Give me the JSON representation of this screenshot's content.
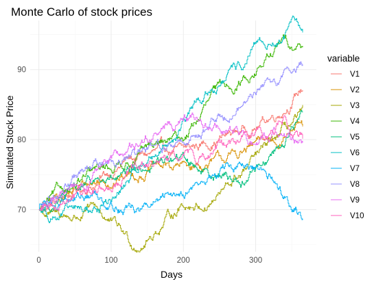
{
  "chart_data": {
    "type": "line",
    "title": "Monte Carlo of stock prices",
    "xlabel": "Days",
    "ylabel": "Simulated Stock Price",
    "xlim": [
      -12,
      384
    ],
    "ylim": [
      64,
      97
    ],
    "xticks": [
      0,
      100,
      200,
      300
    ],
    "yticks": [
      70,
      80,
      90
    ],
    "grid": true,
    "legend": {
      "title": "variable",
      "placement": "right"
    },
    "series": [
      {
        "name": "V1",
        "color": "#F8766D",
        "keypoints": [
          [
            0,
            70
          ],
          [
            40,
            72
          ],
          [
            80,
            74
          ],
          [
            120,
            77
          ],
          [
            160,
            78
          ],
          [
            200,
            78
          ],
          [
            240,
            80
          ],
          [
            270,
            81
          ],
          [
            300,
            82
          ],
          [
            330,
            84
          ],
          [
            350,
            86
          ],
          [
            365,
            87.5
          ]
        ]
      },
      {
        "name": "V2",
        "color": "#D89000",
        "keypoints": [
          [
            0,
            70
          ],
          [
            40,
            72.5
          ],
          [
            80,
            74
          ],
          [
            120,
            75
          ],
          [
            160,
            76
          ],
          [
            200,
            76
          ],
          [
            240,
            76.5
          ],
          [
            270,
            77.5
          ],
          [
            300,
            79
          ],
          [
            330,
            80
          ],
          [
            350,
            82
          ],
          [
            365,
            81.5
          ]
        ]
      },
      {
        "name": "V3",
        "color": "#A3A500",
        "keypoints": [
          [
            0,
            70
          ],
          [
            20,
            69
          ],
          [
            50,
            69
          ],
          [
            80,
            70
          ],
          [
            110,
            67
          ],
          [
            130,
            65
          ],
          [
            150,
            66
          ],
          [
            170,
            68
          ],
          [
            200,
            71
          ],
          [
            230,
            71
          ],
          [
            260,
            73
          ],
          [
            290,
            76
          ],
          [
            310,
            78
          ],
          [
            330,
            80
          ],
          [
            350,
            82
          ],
          [
            365,
            83
          ]
        ]
      },
      {
        "name": "V4",
        "color": "#39B600",
        "keypoints": [
          [
            0,
            70
          ],
          [
            40,
            73
          ],
          [
            80,
            75
          ],
          [
            120,
            77
          ],
          [
            160,
            79
          ],
          [
            200,
            80
          ],
          [
            220,
            83
          ],
          [
            240,
            86
          ],
          [
            270,
            88
          ],
          [
            300,
            90
          ],
          [
            320,
            92
          ],
          [
            340,
            94
          ],
          [
            365,
            93.5
          ]
        ]
      },
      {
        "name": "V5",
        "color": "#00BF7D",
        "keypoints": [
          [
            0,
            70
          ],
          [
            40,
            72
          ],
          [
            80,
            74
          ],
          [
            120,
            74
          ],
          [
            150,
            76
          ],
          [
            170,
            77
          ],
          [
            200,
            77
          ],
          [
            230,
            76
          ],
          [
            260,
            75
          ],
          [
            280,
            74
          ],
          [
            300,
            76
          ],
          [
            320,
            78
          ],
          [
            340,
            80
          ],
          [
            365,
            84
          ]
        ]
      },
      {
        "name": "V6",
        "color": "#00BFC4",
        "keypoints": [
          [
            0,
            70
          ],
          [
            40,
            69.5
          ],
          [
            80,
            70
          ],
          [
            110,
            72
          ],
          [
            130,
            75
          ],
          [
            160,
            78
          ],
          [
            190,
            81
          ],
          [
            220,
            85
          ],
          [
            250,
            88
          ],
          [
            280,
            90
          ],
          [
            300,
            93
          ],
          [
            330,
            94
          ],
          [
            350,
            96
          ],
          [
            365,
            95
          ]
        ]
      },
      {
        "name": "V7",
        "color": "#00B0F6",
        "keypoints": [
          [
            0,
            70
          ],
          [
            40,
            72
          ],
          [
            80,
            72
          ],
          [
            110,
            71
          ],
          [
            140,
            70
          ],
          [
            170,
            71
          ],
          [
            200,
            73
          ],
          [
            230,
            74
          ],
          [
            260,
            76
          ],
          [
            280,
            76
          ],
          [
            300,
            75
          ],
          [
            320,
            74
          ],
          [
            340,
            72
          ],
          [
            355,
            71
          ],
          [
            365,
            69
          ]
        ]
      },
      {
        "name": "V8",
        "color": "#9590FF",
        "keypoints": [
          [
            0,
            70
          ],
          [
            40,
            74
          ],
          [
            80,
            76
          ],
          [
            110,
            78
          ],
          [
            140,
            77
          ],
          [
            170,
            79
          ],
          [
            200,
            80
          ],
          [
            230,
            82
          ],
          [
            260,
            84
          ],
          [
            280,
            85
          ],
          [
            300,
            87
          ],
          [
            320,
            88
          ],
          [
            340,
            89
          ],
          [
            365,
            91
          ]
        ]
      },
      {
        "name": "V9",
        "color": "#E76BF3",
        "keypoints": [
          [
            0,
            70
          ],
          [
            40,
            73
          ],
          [
            80,
            75
          ],
          [
            120,
            78
          ],
          [
            150,
            80
          ],
          [
            180,
            82
          ],
          [
            200,
            83
          ],
          [
            230,
            82
          ],
          [
            260,
            81
          ],
          [
            280,
            80
          ],
          [
            300,
            79
          ],
          [
            320,
            80
          ],
          [
            340,
            81
          ],
          [
            365,
            80
          ]
        ]
      },
      {
        "name": "V10",
        "color": "#FF62BC",
        "keypoints": [
          [
            0,
            70
          ],
          [
            40,
            72
          ],
          [
            80,
            73
          ],
          [
            120,
            75
          ],
          [
            160,
            76
          ],
          [
            200,
            77
          ],
          [
            230,
            78
          ],
          [
            260,
            79
          ],
          [
            290,
            80
          ],
          [
            320,
            81
          ],
          [
            340,
            83
          ],
          [
            355,
            82
          ],
          [
            365,
            80.5
          ]
        ]
      }
    ]
  }
}
